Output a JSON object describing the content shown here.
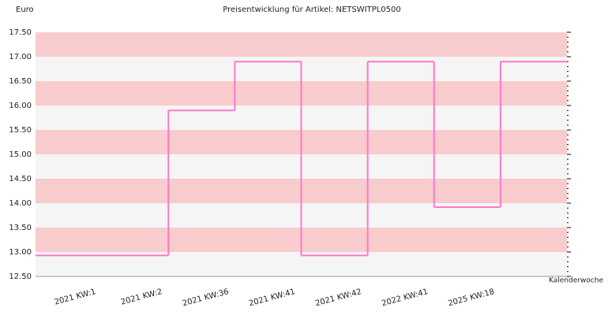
{
  "chart_data": {
    "type": "step",
    "title": "Preisentwicklung für Artikel: NETSWITPL0500",
    "y_label": "Euro",
    "x_label": "Kalenderwoche",
    "categories": [
      "2021 KW:1",
      "2021 KW:2",
      "2021 KW:36",
      "2021 KW:41",
      "2021 KW:42",
      "2022 KW:41",
      "2025 KW:18"
    ],
    "values": [
      12.93,
      15.9,
      16.9,
      12.93,
      16.9,
      13.92,
      16.9
    ],
    "color": "#ff77cc",
    "ylim": [
      12.5,
      17.5
    ],
    "yticks": [
      {
        "value": 12.5,
        "label": "12.50"
      },
      {
        "value": 13,
        "label": "13.00"
      },
      {
        "value": 13.5,
        "label": "13.50"
      },
      {
        "value": 14,
        "label": "14.00"
      },
      {
        "value": 14.5,
        "label": "14.50"
      },
      {
        "value": 15,
        "label": "15.00"
      },
      {
        "value": 15.5,
        "label": "15.50"
      },
      {
        "value": 16,
        "label": "16.00"
      },
      {
        "value": 16.5,
        "label": "16.50"
      },
      {
        "value": 17,
        "label": "17.00"
      },
      {
        "value": 17.5,
        "label": "17.50"
      }
    ],
    "band_colors": [
      "#f5f5f5",
      "#f8cccc"
    ]
  }
}
